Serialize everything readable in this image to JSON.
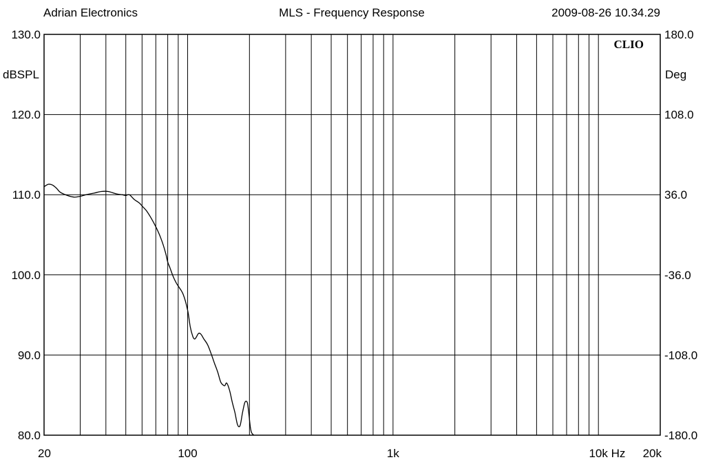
{
  "header": {
    "company": "Adrian Electronics",
    "title": "MLS - Frequency Response",
    "timestamp": "2009-08-26 10.34.29"
  },
  "brand": "CLIO",
  "chart_data": {
    "type": "line",
    "title": "MLS - Frequency Response",
    "x_scale": "log",
    "xlim": [
      20,
      20000
    ],
    "ylim": [
      80,
      130
    ],
    "y2lim": [
      -180,
      180
    ],
    "grid": true,
    "ylabel": "dBSPL",
    "y2label": "Deg",
    "xunit": "Hz",
    "x_tick_labels": [
      {
        "value": 20,
        "label": "20"
      },
      {
        "value": 100,
        "label": "100"
      },
      {
        "value": 1000,
        "label": "1k"
      },
      {
        "value": 10000,
        "label": "10k"
      },
      {
        "value": 20000,
        "label": "20k"
      }
    ],
    "y_tick_labels": [
      "130.0",
      "120.0",
      "110.0",
      "100.0",
      "90.0",
      "80.0"
    ],
    "y_ticks": [
      130,
      120,
      110,
      100,
      90,
      80
    ],
    "y2_tick_labels": [
      "180.0",
      "108.0",
      "36.0",
      "-36.0",
      "-108.0",
      "-180.0"
    ],
    "series": [
      {
        "color": "#000000",
        "x": [
          20,
          21,
          22,
          23,
          24,
          26,
          28,
          30,
          32,
          35,
          38,
          41,
          45,
          48,
          50,
          52,
          55,
          58,
          60,
          63,
          66,
          70,
          74,
          78,
          80,
          82,
          85,
          88,
          90,
          95,
          100,
          103,
          106,
          108,
          110,
          113,
          116,
          120,
          125,
          130,
          135,
          140,
          145,
          150,
          152,
          155,
          160,
          165,
          170,
          175,
          180,
          185,
          190,
          195,
          198,
          202,
          205,
          210
        ],
        "values": [
          111.0,
          111.3,
          111.2,
          110.8,
          110.3,
          109.9,
          109.7,
          109.8,
          110.0,
          110.2,
          110.4,
          110.4,
          110.1,
          110.0,
          109.9,
          110.0,
          109.4,
          109.0,
          108.6,
          108.0,
          107.2,
          106.0,
          104.6,
          102.8,
          101.6,
          100.9,
          99.8,
          99.0,
          98.6,
          97.6,
          95.6,
          93.5,
          92.3,
          92.0,
          92.2,
          92.7,
          92.6,
          92.0,
          91.3,
          90.2,
          89.0,
          87.9,
          86.6,
          86.2,
          86.2,
          86.5,
          85.6,
          84.1,
          82.8,
          81.3,
          81.2,
          82.8,
          84.1,
          84.1,
          83.0,
          81.0,
          80.3,
          80.0
        ]
      }
    ]
  }
}
